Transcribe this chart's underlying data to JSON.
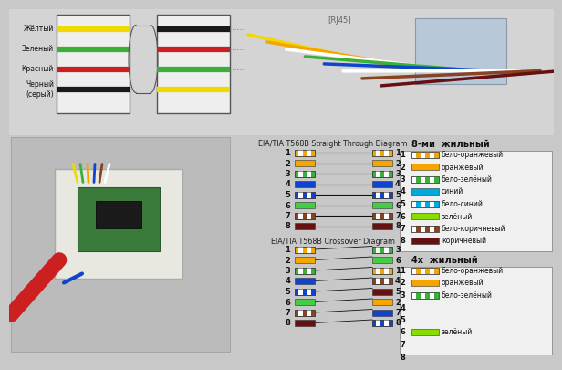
{
  "bg_color": "#c8c8c8",
  "fig_w": 5.97,
  "fig_h": 3.79,
  "top_labels": [
    "Жёлтый",
    "Зеленый",
    "Красный",
    "Черный\n(серый)"
  ],
  "top_wire_colors_L": [
    "#f0d800",
    "#3ab03a",
    "#cc2020",
    "#1a1a1a"
  ],
  "top_wire_colors_R": [
    "#1a1a1a",
    "#cc2020",
    "#3ab03a",
    "#f0d800"
  ],
  "straight_left_colors": [
    [
      "#f5a500",
      "#ffffff"
    ],
    [
      "#f5a500",
      "#f5a500"
    ],
    [
      "#3ab03a",
      "#ffffff"
    ],
    [
      "#1144cc",
      "#1144cc"
    ],
    [
      "#1144cc",
      "#ffffff"
    ],
    [
      "#44cc44",
      "#44cc44"
    ],
    [
      "#884422",
      "#ffffff"
    ],
    [
      "#661111",
      "#661111"
    ]
  ],
  "straight_right_colors": [
    [
      "#f5a500",
      "#ffffff"
    ],
    [
      "#f5a500",
      "#f5a500"
    ],
    [
      "#3ab03a",
      "#ffffff"
    ],
    [
      "#1144cc",
      "#1144cc"
    ],
    [
      "#1144cc",
      "#ffffff"
    ],
    [
      "#44cc44",
      "#44cc44"
    ],
    [
      "#884422",
      "#ffffff"
    ],
    [
      "#661111",
      "#661111"
    ]
  ],
  "crossover_left_colors": [
    [
      "#f5a500",
      "#ffffff"
    ],
    [
      "#f5a500",
      "#f5a500"
    ],
    [
      "#3ab03a",
      "#ffffff"
    ],
    [
      "#1144cc",
      "#1144cc"
    ],
    [
      "#1144cc",
      "#ffffff"
    ],
    [
      "#44cc44",
      "#44cc44"
    ],
    [
      "#884422",
      "#ffffff"
    ],
    [
      "#661111",
      "#661111"
    ]
  ],
  "crossover_right_order": [
    3,
    6,
    1,
    4,
    5,
    2,
    7,
    8
  ],
  "crossover_right_colors": [
    [
      "#3ab03a",
      "#ffffff"
    ],
    [
      "#44cc44",
      "#44cc44"
    ],
    [
      "#f5a500",
      "#ffffff"
    ],
    [
      "#884422",
      "#ffffff"
    ],
    [
      "#661111",
      "#661111"
    ],
    [
      "#f5a500",
      "#f5a500"
    ],
    [
      "#1144cc",
      "#1144cc"
    ],
    [
      "#1144cc",
      "#ffffff"
    ]
  ],
  "legend8_title": "8-ми  жильный",
  "legend8": [
    {
      "num": 1,
      "colors": [
        "#ffffff",
        "#f5a500"
      ],
      "label": "бело-оранжевый"
    },
    {
      "num": 2,
      "colors": [
        "#f5a500",
        "#f5a500"
      ],
      "label": "оранжевый"
    },
    {
      "num": 3,
      "colors": [
        "#ffffff",
        "#3ab03a"
      ],
      "label": "бело-зелёный"
    },
    {
      "num": 4,
      "colors": [
        "#00aadd",
        "#00aadd"
      ],
      "label": "синий"
    },
    {
      "num": 5,
      "colors": [
        "#ffffff",
        "#00aadd"
      ],
      "label": "бело-синий"
    },
    {
      "num": 6,
      "colors": [
        "#88dd00",
        "#88dd00"
      ],
      "label": "зелёный"
    },
    {
      "num": 7,
      "colors": [
        "#ffffff",
        "#884422"
      ],
      "label": "бело-коричневый"
    },
    {
      "num": 8,
      "colors": [
        "#661111",
        "#661111"
      ],
      "label": "коричневый"
    }
  ],
  "legend4_title": "4х  жильный",
  "legend4": [
    {
      "num": 1,
      "colors": [
        "#ffffff",
        "#f5a500"
      ],
      "label": "бело-оранжевый"
    },
    {
      "num": 2,
      "colors": [
        "#f5a500",
        "#f5a500"
      ],
      "label": "оранжевый"
    },
    {
      "num": 3,
      "colors": [
        "#ffffff",
        "#3ab03a"
      ],
      "label": "бело-зелёный"
    },
    {
      "num": 4,
      "colors": null,
      "label": ""
    },
    {
      "num": 5,
      "colors": null,
      "label": ""
    },
    {
      "num": 6,
      "colors": [
        "#88dd00",
        "#88dd00"
      ],
      "label": "зелёный"
    },
    {
      "num": 7,
      "colors": null,
      "label": ""
    },
    {
      "num": 8,
      "colors": null,
      "label": ""
    }
  ],
  "straight_title": "EIA/TIA T568B Straight Through Diagram",
  "crossover_title": "EIA/TIA T568B Crossover Diagram"
}
